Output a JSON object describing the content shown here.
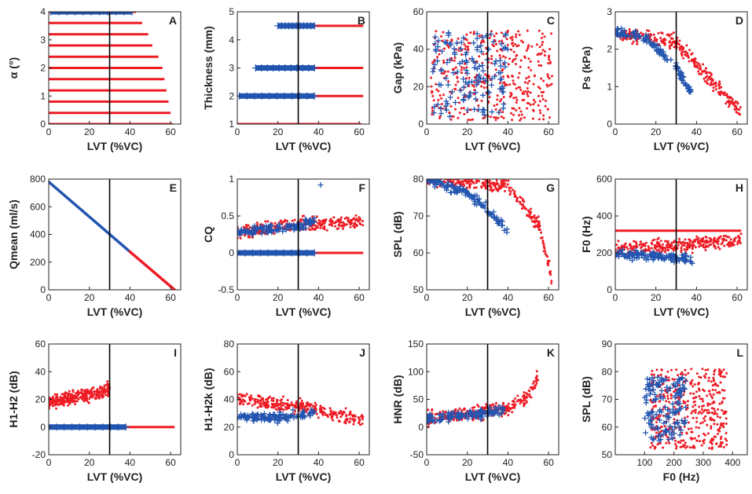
{
  "colors": {
    "red_series": "#ee1c25",
    "blue_series": "#2255b0",
    "ref_line": "#000000",
    "axes": "#222222"
  },
  "panels": [
    {
      "id": "A",
      "xlabel": "LVT (%VC)",
      "ylabel": "α (°)",
      "xticks": [
        "0",
        "20",
        "40",
        "60"
      ],
      "yticks": [
        "0",
        "1",
        "2",
        "3",
        "4"
      ]
    },
    {
      "id": "B",
      "xlabel": "LVT (%VC)",
      "ylabel": "Thickness (mm)",
      "xticks": [
        "0",
        "20",
        "40",
        "60"
      ],
      "yticks": [
        "1",
        "2",
        "3",
        "4",
        "5"
      ]
    },
    {
      "id": "C",
      "xlabel": "LVT (%VC)",
      "ylabel": "Gap (kPa)",
      "xticks": [
        "0",
        "20",
        "40",
        "60"
      ],
      "yticks": [
        "0",
        "20",
        "40",
        "60"
      ]
    },
    {
      "id": "D",
      "xlabel": "LVT (%VC)",
      "ylabel": "Ps (kPa)",
      "xticks": [
        "0",
        "20",
        "40",
        "60"
      ],
      "yticks": [
        "0",
        "1",
        "2",
        "3"
      ]
    },
    {
      "id": "E",
      "xlabel": "LVT (%VC)",
      "ylabel": "Qmean (ml/s)",
      "xticks": [
        "0",
        "20",
        "40",
        "60"
      ],
      "yticks": [
        "0",
        "200",
        "400",
        "600",
        "800"
      ]
    },
    {
      "id": "F",
      "xlabel": "LVT (%VC)",
      "ylabel": "CQ",
      "xticks": [
        "0",
        "20",
        "40",
        "60"
      ],
      "yticks": [
        "-0.5",
        "0",
        "0.5",
        "1"
      ]
    },
    {
      "id": "G",
      "xlabel": "LVT (%VC)",
      "ylabel": "SPL (dB)",
      "xticks": [
        "0",
        "20",
        "40",
        "60"
      ],
      "yticks": [
        "50",
        "60",
        "70",
        "80"
      ]
    },
    {
      "id": "H",
      "xlabel": "LVT (%VC)",
      "ylabel": "F0 (Hz)",
      "xticks": [
        "0",
        "20",
        "40",
        "60"
      ],
      "yticks": [
        "0",
        "200",
        "400",
        "600"
      ]
    },
    {
      "id": "I",
      "xlabel": "LVT (%VC)",
      "ylabel": "H1-H2 (dB)",
      "xticks": [
        "0",
        "20",
        "40",
        "60"
      ],
      "yticks": [
        "-20",
        "0",
        "20",
        "40",
        "60"
      ]
    },
    {
      "id": "J",
      "xlabel": "LVT (%VC)",
      "ylabel": "H1-H2k (dB)",
      "xticks": [
        "0",
        "20",
        "40",
        "60"
      ],
      "yticks": [
        "0",
        "20",
        "40",
        "60",
        "80"
      ]
    },
    {
      "id": "K",
      "xlabel": "LVT (%VC)",
      "ylabel": "HNR (dB)",
      "xticks": [
        "0",
        "20",
        "40",
        "60"
      ],
      "yticks": [
        "-50",
        "0",
        "50",
        "100",
        "150"
      ]
    },
    {
      "id": "L",
      "xlabel": "F0 (Hz)",
      "ylabel": "SPL (dB)",
      "xticks": [
        "100",
        "200",
        "300",
        "400"
      ],
      "yticks": [
        "50",
        "60",
        "70",
        "80",
        "90"
      ]
    }
  ],
  "chart_data": [
    {
      "panel": "A",
      "type": "scatter",
      "xlabel": "LVT (%VC)",
      "ylabel": "α (°)",
      "xlim": [
        0,
        65
      ],
      "ylim": [
        0,
        4
      ],
      "ref_x": 30,
      "series": [
        {
          "marker": "dot",
          "color": "#ee1c25",
          "bands": [
            {
              "y": 0.0,
              "x": [
                0,
                61
              ]
            },
            {
              "y": 0.4,
              "x": [
                0,
                60
              ]
            },
            {
              "y": 0.8,
              "x": [
                0,
                59
              ]
            },
            {
              "y": 1.2,
              "x": [
                0,
                58
              ]
            },
            {
              "y": 1.6,
              "x": [
                0,
                57
              ]
            },
            {
              "y": 2.0,
              "x": [
                0,
                56
              ]
            },
            {
              "y": 2.4,
              "x": [
                0,
                54
              ]
            },
            {
              "y": 2.8,
              "x": [
                0,
                51
              ]
            },
            {
              "y": 3.2,
              "x": [
                0,
                49
              ]
            },
            {
              "y": 3.6,
              "x": [
                0,
                46
              ]
            },
            {
              "y": 4.0,
              "x": [
                0,
                43
              ]
            }
          ]
        },
        {
          "marker": "plus",
          "color": "#2255b0",
          "bands": [
            {
              "y": 4.0,
              "x": [
                1,
                41
              ]
            }
          ]
        }
      ]
    },
    {
      "panel": "B",
      "type": "scatter",
      "xlabel": "LVT (%VC)",
      "ylabel": "Thickness (mm)",
      "xlim": [
        0,
        65
      ],
      "ylim": [
        1,
        5
      ],
      "ref_x": 30,
      "series": [
        {
          "marker": "dot",
          "color": "#ee1c25",
          "bands": [
            {
              "y": 1.0,
              "x": [
                0,
                61
              ]
            },
            {
              "y": 2.0,
              "x": [
                2,
                62
              ]
            },
            {
              "y": 3.0,
              "x": [
                9,
                62
              ]
            },
            {
              "y": 4.5,
              "x": [
                20,
                62
              ]
            }
          ]
        },
        {
          "marker": "plus",
          "color": "#2255b0",
          "bands": [
            {
              "y": 2.0,
              "x": [
                1,
                38
              ]
            },
            {
              "y": 3.0,
              "x": [
                9,
                38
              ]
            },
            {
              "y": 4.5,
              "x": [
                20,
                38
              ]
            }
          ]
        }
      ]
    },
    {
      "panel": "C",
      "type": "scatter",
      "xlabel": "LVT (%VC)",
      "ylabel": "Gap (kPa)",
      "xlim": [
        0,
        65
      ],
      "ylim": [
        0,
        60
      ],
      "ref_x": 30,
      "series": [
        {
          "marker": "dot",
          "color": "#ee1c25",
          "region": {
            "x": [
              2,
              62
            ],
            "y": [
              2,
              50
            ]
          }
        },
        {
          "marker": "plus",
          "color": "#2255b0",
          "region": {
            "x": [
              3,
              40
            ],
            "y": [
              4,
              50
            ]
          }
        }
      ]
    },
    {
      "panel": "D",
      "type": "scatter",
      "xlabel": "LVT (%VC)",
      "ylabel": "Ps (kPa)",
      "xlim": [
        0,
        65
      ],
      "ylim": [
        0,
        3
      ],
      "ref_x": 30,
      "series": [
        {
          "marker": "dot",
          "color": "#ee1c25",
          "trend": [
            [
              0,
              2.4
            ],
            [
              30,
              2.2
            ],
            [
              45,
              1.3
            ],
            [
              62,
              0.3
            ]
          ]
        },
        {
          "marker": "plus",
          "color": "#2255b0",
          "trend": [
            [
              0,
              2.45
            ],
            [
              15,
              2.3
            ],
            [
              30,
              1.5
            ],
            [
              38,
              0.8
            ]
          ]
        }
      ]
    },
    {
      "panel": "E",
      "type": "line",
      "xlabel": "LVT (%VC)",
      "ylabel": "Qmean (ml/s)",
      "xlim": [
        0,
        65
      ],
      "ylim": [
        0,
        800
      ],
      "ref_x": 30,
      "series": [
        {
          "color": "#2255b0",
          "x": [
            0,
            40
          ],
          "y": [
            780,
            275
          ]
        },
        {
          "color": "#ee1c25",
          "x": [
            40,
            62
          ],
          "y": [
            275,
            0
          ]
        }
      ]
    },
    {
      "panel": "F",
      "type": "scatter",
      "xlabel": "LVT (%VC)",
      "ylabel": "CQ",
      "xlim": [
        0,
        65
      ],
      "ylim": [
        -0.5,
        1
      ],
      "ref_x": 30,
      "series": [
        {
          "marker": "dot",
          "color": "#ee1c25",
          "bands": [
            {
              "y": 0.0,
              "x": [
                0,
                62
              ]
            }
          ],
          "trend": [
            [
              0,
              0.28
            ],
            [
              30,
              0.38
            ],
            [
              62,
              0.42
            ]
          ]
        },
        {
          "marker": "plus",
          "color": "#2255b0",
          "bands": [
            {
              "y": 0.0,
              "x": [
                0,
                38
              ]
            }
          ],
          "trend": [
            [
              0,
              0.28
            ],
            [
              30,
              0.36
            ],
            [
              38,
              0.45
            ]
          ],
          "outlier": [
            41,
            0.92
          ]
        }
      ]
    },
    {
      "panel": "G",
      "type": "scatter",
      "xlabel": "LVT (%VC)",
      "ylabel": "SPL (dB)",
      "xlim": [
        0,
        65
      ],
      "ylim": [
        50,
        80
      ],
      "ref_x": 30,
      "series": [
        {
          "marker": "dot",
          "color": "#ee1c25",
          "trend": [
            [
              0,
              80
            ],
            [
              40,
              78
            ],
            [
              55,
              68
            ],
            [
              62,
              52
            ]
          ]
        },
        {
          "marker": "plus",
          "color": "#2255b0",
          "trend": [
            [
              0,
              80
            ],
            [
              20,
              76
            ],
            [
              30,
              72
            ],
            [
              40,
              66
            ]
          ]
        }
      ]
    },
    {
      "panel": "H",
      "type": "scatter",
      "xlabel": "LVT (%VC)",
      "ylabel": "F0 (Hz)",
      "xlim": [
        0,
        65
      ],
      "ylim": [
        0,
        600
      ],
      "ref_x": 30,
      "series": [
        {
          "marker": "dot",
          "color": "#ee1c25",
          "bands": [
            {
              "y": 320,
              "x": [
                0,
                62
              ]
            }
          ],
          "trend": [
            [
              0,
              220
            ],
            [
              30,
              240
            ],
            [
              62,
              270
            ]
          ]
        },
        {
          "marker": "plus",
          "color": "#2255b0",
          "trend": [
            [
              0,
              190
            ],
            [
              20,
              185
            ],
            [
              38,
              160
            ]
          ]
        }
      ]
    },
    {
      "panel": "I",
      "type": "scatter",
      "xlabel": "LVT (%VC)",
      "ylabel": "H1-H2 (dB)",
      "xlim": [
        0,
        65
      ],
      "ylim": [
        -20,
        60
      ],
      "ref_x": 30,
      "series": [
        {
          "marker": "dot",
          "color": "#ee1c25",
          "trend": [
            [
              0,
              18
            ],
            [
              25,
              25
            ],
            [
              30,
              28
            ]
          ],
          "bands": [
            {
              "y": 0,
              "x": [
                0,
                62
              ]
            }
          ]
        },
        {
          "marker": "plus",
          "color": "#2255b0",
          "bands": [
            {
              "y": 0,
              "x": [
                0,
                38
              ]
            }
          ]
        }
      ]
    },
    {
      "panel": "J",
      "type": "scatter",
      "xlabel": "LVT (%VC)",
      "ylabel": "H1-H2k (dB)",
      "xlim": [
        0,
        65
      ],
      "ylim": [
        0,
        80
      ],
      "ref_x": 30,
      "series": [
        {
          "marker": "dot",
          "color": "#ee1c25",
          "trend": [
            [
              0,
              40
            ],
            [
              30,
              35
            ],
            [
              62,
              25
            ]
          ]
        },
        {
          "marker": "plus",
          "color": "#2255b0",
          "trend": [
            [
              0,
              27
            ],
            [
              20,
              27
            ],
            [
              38,
              30
            ]
          ]
        }
      ]
    },
    {
      "panel": "K",
      "type": "scatter",
      "xlabel": "LVT (%VC)",
      "ylabel": "HNR (dB)",
      "xlim": [
        0,
        65
      ],
      "ylim": [
        -50,
        150
      ],
      "ref_x": 30,
      "series": [
        {
          "marker": "dot",
          "color": "#ee1c25",
          "trend": [
            [
              0,
              15
            ],
            [
              30,
              28
            ],
            [
              40,
              35
            ],
            [
              50,
              55
            ],
            [
              55,
              95
            ]
          ]
        },
        {
          "marker": "plus",
          "color": "#2255b0",
          "trend": [
            [
              0,
              14
            ],
            [
              20,
              22
            ],
            [
              38,
              30
            ]
          ]
        }
      ]
    },
    {
      "panel": "L",
      "type": "scatter",
      "xlabel": "F0 (Hz)",
      "ylabel": "SPL (dB)",
      "xlim": [
        0,
        450
      ],
      "ylim": [
        50,
        90
      ],
      "ref_x": null,
      "series": [
        {
          "marker": "dot",
          "color": "#ee1c25",
          "region": {
            "x": [
              120,
              380
            ],
            "y": [
              52,
              81
            ]
          }
        },
        {
          "marker": "plus",
          "color": "#2255b0",
          "region": {
            "x": [
              100,
              240
            ],
            "y": [
              55,
              78
            ]
          }
        }
      ]
    }
  ]
}
